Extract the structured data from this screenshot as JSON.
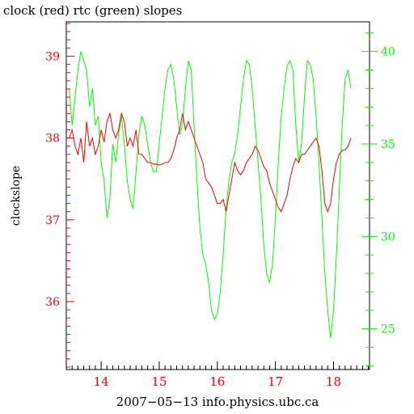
{
  "chart_data": {
    "type": "line",
    "title": "clock (red) rtc (green) slopes",
    "xlabel": "2007−05−13 info.physics.ubc.ca",
    "ylabel": "clockslope",
    "x_ticks": [
      "14",
      "15",
      "16",
      "17",
      "18"
    ],
    "x_tick_values": [
      14,
      15,
      16,
      17,
      18
    ],
    "xlim": [
      13.4,
      18.62
    ],
    "ylim": [
      35.17,
      39.42
    ],
    "y_ticks": [
      "36",
      "37",
      "38",
      "39"
    ],
    "y_tick_values": [
      36,
      37,
      38,
      39
    ],
    "y2lim": [
      22.8,
      41.6
    ],
    "y2_ticks": [
      "25",
      "30",
      "35",
      "40"
    ],
    "y2_tick_values": [
      25,
      30,
      35,
      40
    ],
    "grid": false,
    "colors": {
      "clock": "#ff0000",
      "rtc": "#00ff00",
      "axis": "#000000"
    },
    "series": [
      {
        "axis": "left",
        "x": [
          13.45,
          13.5,
          13.55,
          13.6,
          13.65,
          13.7,
          13.75,
          13.8,
          13.85,
          13.9,
          13.95,
          14.0,
          14.05,
          14.1,
          14.15,
          14.2,
          14.25,
          14.3,
          14.35,
          14.4,
          14.45,
          14.5,
          14.55,
          14.6,
          14.65,
          14.7,
          14.75,
          14.8,
          14.85,
          14.9,
          14.95,
          15.0,
          15.05,
          15.1,
          15.15,
          15.2,
          15.25,
          15.3,
          15.35,
          15.4,
          15.45,
          15.5,
          15.55,
          15.6,
          15.65,
          15.7,
          15.75,
          15.8,
          15.85,
          15.9,
          15.95,
          16.0,
          16.05,
          16.1,
          16.15,
          16.2,
          16.25,
          16.3,
          16.35,
          16.4,
          16.45,
          16.5,
          16.55,
          16.6,
          16.65,
          16.7,
          16.75,
          16.8,
          16.85,
          16.9,
          16.95,
          17.0,
          17.05,
          17.1,
          17.15,
          17.2,
          17.25,
          17.3,
          17.35,
          17.4,
          17.45,
          17.5,
          17.55,
          17.6,
          17.65,
          17.7,
          17.75,
          17.8,
          17.85,
          17.9,
          17.95,
          18.0,
          18.05,
          18.1,
          18.15,
          18.2,
          18.25,
          18.3
        ],
        "values": [
          38.0,
          38.1,
          37.9,
          37.8,
          38.0,
          37.7,
          38.2,
          37.9,
          38.0,
          37.8,
          37.9,
          38.1,
          37.95,
          38.2,
          38.3,
          38.1,
          38.0,
          38.1,
          38.3,
          38.2,
          37.9,
          38.0,
          37.9,
          38.1,
          37.8,
          37.8,
          37.75,
          37.7,
          37.7,
          37.68,
          37.68,
          37.67,
          37.68,
          37.7,
          37.7,
          37.75,
          37.85,
          38.0,
          38.1,
          38.3,
          38.1,
          38.2,
          38.1,
          38.0,
          37.9,
          37.8,
          37.7,
          37.5,
          37.45,
          37.4,
          37.3,
          37.2,
          37.2,
          37.25,
          37.1,
          37.3,
          37.5,
          37.7,
          37.6,
          37.55,
          37.6,
          37.7,
          37.75,
          37.8,
          37.9,
          37.85,
          37.75,
          37.65,
          37.6,
          37.45,
          37.35,
          37.25,
          37.15,
          37.1,
          37.2,
          37.3,
          37.5,
          37.65,
          37.75,
          37.7,
          37.8,
          37.8,
          37.85,
          37.9,
          37.95,
          38.0,
          37.9,
          37.6,
          37.2,
          37.1,
          37.2,
          37.5,
          37.7,
          37.8,
          37.85,
          37.85,
          37.9,
          38.0
        ]
      },
      {
        "axis": "right",
        "x": [
          13.45,
          13.5,
          13.55,
          13.6,
          13.65,
          13.7,
          13.75,
          13.8,
          13.85,
          13.9,
          13.95,
          14.0,
          14.05,
          14.1,
          14.15,
          14.2,
          14.25,
          14.3,
          14.35,
          14.4,
          14.45,
          14.5,
          14.55,
          14.6,
          14.65,
          14.7,
          14.75,
          14.8,
          14.85,
          14.9,
          14.95,
          15.0,
          15.05,
          15.1,
          15.15,
          15.2,
          15.25,
          15.3,
          15.35,
          15.4,
          15.45,
          15.5,
          15.55,
          15.6,
          15.65,
          15.7,
          15.75,
          15.8,
          15.85,
          15.9,
          15.95,
          16.0,
          16.05,
          16.1,
          16.15,
          16.2,
          16.25,
          16.3,
          16.35,
          16.4,
          16.45,
          16.5,
          16.55,
          16.6,
          16.65,
          16.7,
          16.75,
          16.8,
          16.85,
          16.9,
          16.95,
          17.0,
          17.05,
          17.1,
          17.15,
          17.2,
          17.25,
          17.3,
          17.35,
          17.4,
          17.45,
          17.5,
          17.55,
          17.6,
          17.65,
          17.7,
          17.75,
          17.8,
          17.85,
          17.9,
          17.95,
          18.0,
          18.05,
          18.1,
          18.15,
          18.2,
          18.25,
          18.3
        ],
        "values": [
          38.0,
          36.0,
          37.5,
          39.0,
          40.0,
          39.5,
          39.0,
          37.0,
          38.0,
          36.0,
          36.5,
          34.0,
          33.0,
          31.0,
          32.0,
          35.0,
          34.0,
          35.5,
          36.5,
          35.0,
          33.0,
          32.0,
          31.5,
          33.5,
          35.5,
          36.5,
          36.0,
          35.0,
          34.0,
          33.5,
          33.5,
          35.0,
          36.5,
          38.0,
          39.0,
          39.3,
          38.5,
          37.0,
          35.5,
          36.0,
          38.0,
          39.5,
          39.0,
          36.0,
          33.0,
          30.5,
          29.0,
          28.5,
          27.5,
          26.0,
          25.5,
          25.8,
          27.0,
          29.0,
          31.5,
          33.0,
          34.0,
          34.5,
          35.5,
          37.0,
          38.5,
          39.5,
          39.3,
          38.0,
          36.0,
          34.0,
          32.0,
          29.5,
          28.0,
          27.5,
          28.5,
          31.0,
          34.0,
          36.5,
          38.0,
          39.2,
          39.5,
          39.0,
          36.0,
          34.0,
          35.0,
          37.5,
          39.5,
          39.3,
          38.5,
          36.5,
          34.0,
          31.0,
          28.0,
          26.0,
          24.5,
          26.0,
          29.0,
          32.5,
          36.0,
          38.5,
          39.0,
          38.0
        ]
      }
    ]
  }
}
